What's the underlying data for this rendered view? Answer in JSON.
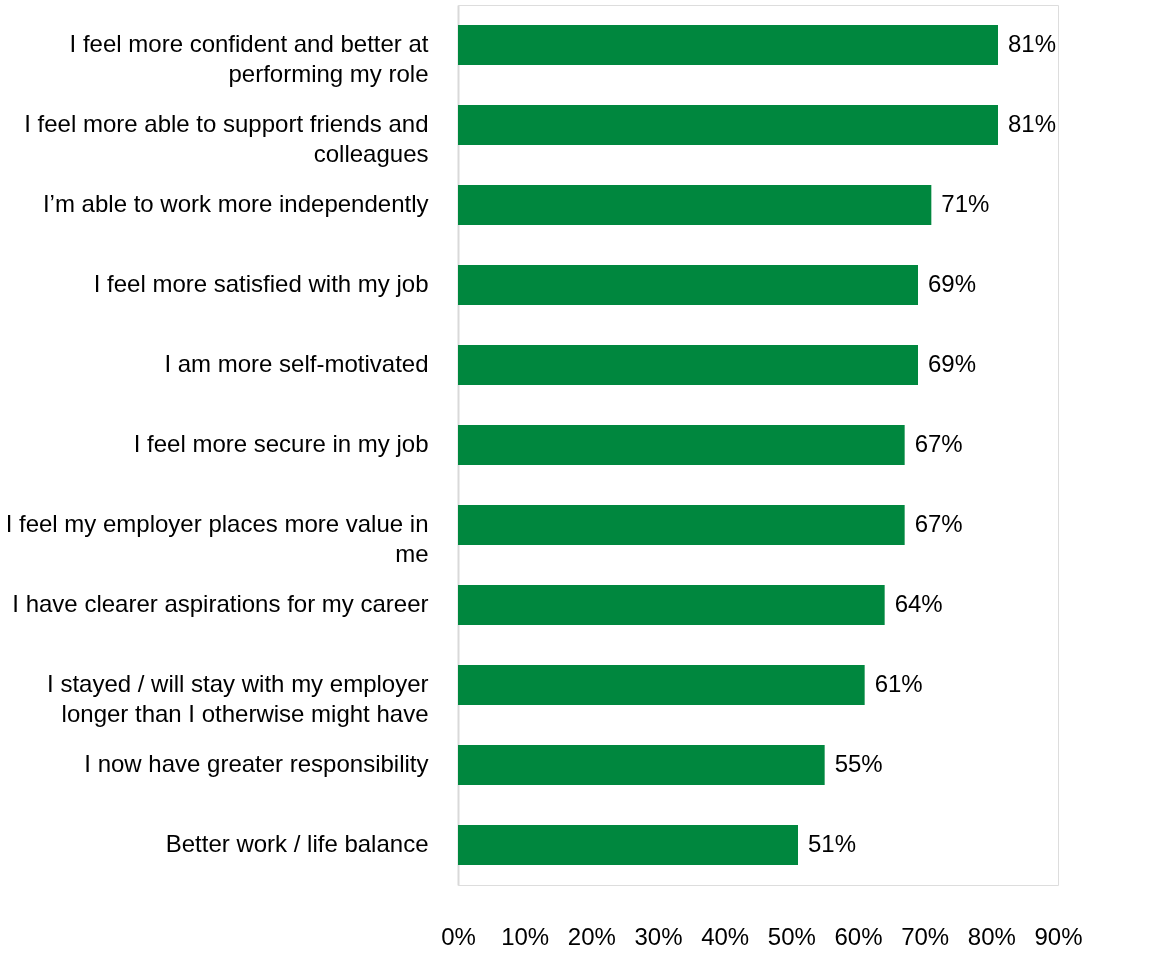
{
  "chart_data": {
    "type": "bar",
    "orientation": "horizontal",
    "categories": [
      "I feel more confident and better at performing my role",
      "I feel more able to support friends and colleagues",
      "I’m able to work more independently",
      "I feel more satisfied with my job",
      "I am more self-motivated",
      "I feel more secure in my job",
      "I feel my employer places more value in me",
      "I have clearer aspirations for my career",
      "I stayed / will stay with my employer longer than I otherwise might have",
      "I now have greater responsibility",
      "Better work / life balance"
    ],
    "values": [
      81,
      81,
      71,
      69,
      69,
      67,
      67,
      64,
      61,
      55,
      51
    ],
    "value_labels": [
      "81%",
      "81%",
      "71%",
      "69%",
      "69%",
      "67%",
      "67%",
      "64%",
      "61%",
      "55%",
      "51%"
    ],
    "color": "#00873e",
    "xlim": [
      0,
      90
    ],
    "xticks": [
      {
        "value": 0,
        "label": "0%"
      },
      {
        "value": 10,
        "label": "10%"
      },
      {
        "value": 20,
        "label": "20%"
      },
      {
        "value": 30,
        "label": "30%"
      },
      {
        "value": 40,
        "label": "40%"
      },
      {
        "value": 50,
        "label": "50%"
      },
      {
        "value": 60,
        "label": "60%"
      },
      {
        "value": 70,
        "label": "70%"
      },
      {
        "value": 80,
        "label": "80%"
      },
      {
        "value": 90,
        "label": "90%"
      }
    ],
    "grid": false
  }
}
